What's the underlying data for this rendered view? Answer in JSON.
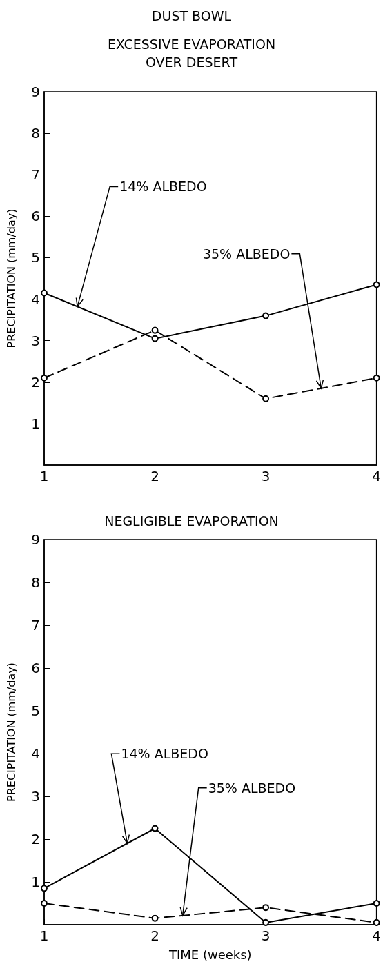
{
  "chart_data": [
    {
      "type": "line",
      "title": "DUST BOWL",
      "subtitle": "EXCESSIVE EVAPORATION\nOVER DESERT",
      "ylabel": "PRECIPITATION (mm/day)",
      "x": [
        1,
        2,
        3,
        4
      ],
      "xlim": [
        1,
        4
      ],
      "xticks": [
        1,
        2,
        3,
        4
      ],
      "ylim": [
        0,
        9
      ],
      "yticks": [
        1,
        2,
        3,
        4,
        5,
        6,
        7,
        8,
        9
      ],
      "grid": false,
      "legend": false,
      "marker": "circle",
      "series": [
        {
          "name": "14% ALBEDO",
          "color": "#000000",
          "line_style": "solid",
          "values": [
            4.15,
            3.05,
            3.6,
            4.35
          ]
        },
        {
          "name": "35% ALBEDO",
          "color": "#000000",
          "line_style": "dashed",
          "values": [
            2.1,
            3.25,
            1.6,
            2.1
          ]
        }
      ]
    },
    {
      "type": "line",
      "title": "NEGLIGIBLE EVAPORATION",
      "xlabel": "TIME (weeks)",
      "ylabel": "PRECIPITATION (mm/day)",
      "x": [
        1,
        2,
        3,
        4
      ],
      "xlim": [
        1,
        4
      ],
      "xticks": [
        1,
        2,
        3,
        4
      ],
      "ylim": [
        0,
        9
      ],
      "yticks": [
        1,
        2,
        3,
        4,
        5,
        6,
        7,
        8,
        9
      ],
      "grid": false,
      "legend": false,
      "marker": "circle",
      "series": [
        {
          "name": "14% ALBEDO",
          "color": "#000000",
          "line_style": "solid",
          "values": [
            0.85,
            2.25,
            0.05,
            0.5
          ]
        },
        {
          "name": "35% ALBEDO",
          "color": "#000000",
          "line_style": "dashed",
          "values": [
            0.5,
            0.15,
            0.4,
            0.05
          ]
        }
      ]
    }
  ]
}
